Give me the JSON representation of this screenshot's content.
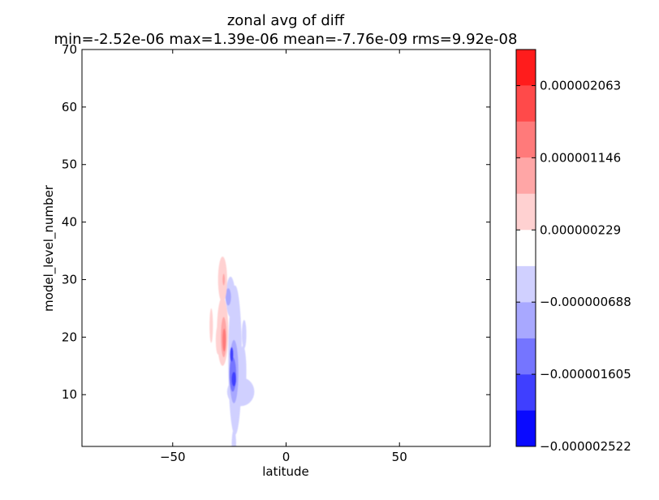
{
  "chart_data": {
    "type": "heatmap",
    "title": "zonal avg of diff",
    "subtitle": "min=-2.52e-06 max=1.39e-06 mean=-7.76e-09 rms=9.92e-08",
    "xlabel": "latitude",
    "ylabel": "model_level_number",
    "xlim": [
      -90,
      90
    ],
    "ylim": [
      1,
      70
    ],
    "x_ticks": [
      -50,
      0,
      50
    ],
    "x_tick_labels": [
      "−50",
      "0",
      "50"
    ],
    "y_ticks": [
      10,
      20,
      30,
      40,
      50,
      60,
      70
    ],
    "y_tick_labels": [
      "10",
      "20",
      "30",
      "40",
      "50",
      "60",
      "70"
    ],
    "colorbar": {
      "levels": [
        -2.522e-06,
        -2.0635e-06,
        -1.605e-06,
        -1.1465e-06,
        -6.88e-07,
        -2.295e-07,
        2.29e-07,
        6.875e-07,
        1.146e-06,
        1.6045e-06,
        2.063e-06,
        2.5215e-06
      ],
      "colors": [
        "#0a0aff",
        "#3f3fff",
        "#7575ff",
        "#a8a8ff",
        "#d0d0ff",
        "#ffffff",
        "#ffd1d1",
        "#ffa6a6",
        "#ff7a7a",
        "#ff4a4a",
        "#ff1c1c"
      ],
      "tick_values": [
        2.063e-06,
        1.146e-06,
        2.29e-07,
        -6.88e-07,
        -1.605e-06,
        -2.522e-06
      ],
      "tick_labels": [
        "0.000002063",
        "0.000001146",
        "0.000000229",
        "−0.000000688",
        "−0.000001605",
        "−0.000002522"
      ]
    },
    "features": [
      {
        "lat": -22.5,
        "lev": 16,
        "w": 6,
        "h": 26,
        "level": 4
      },
      {
        "lat": -20,
        "lev": 10.5,
        "w": 12,
        "h": 5,
        "level": 4
      },
      {
        "lat": -23,
        "lev": 1,
        "w": 2,
        "h": 6,
        "level": 4
      },
      {
        "lat": -24.5,
        "lev": 27,
        "w": 4,
        "h": 7,
        "level": 4
      },
      {
        "lat": -19,
        "lev": 14,
        "w": 3,
        "h": 9,
        "level": 4
      },
      {
        "lat": -18.5,
        "lev": 20.5,
        "w": 2,
        "h": 5,
        "level": 4
      },
      {
        "lat": -23,
        "lev": 14,
        "w": 4,
        "h": 11,
        "level": 3
      },
      {
        "lat": -25.5,
        "lev": 27,
        "w": 2.5,
        "h": 3,
        "level": 3
      },
      {
        "lat": -23.5,
        "lev": 13.5,
        "w": 3,
        "h": 6,
        "level": 2
      },
      {
        "lat": -23,
        "lev": 12.7,
        "w": 2,
        "h": 2.5,
        "level": 1
      },
      {
        "lat": -24,
        "lev": 17,
        "w": 1.5,
        "h": 2.5,
        "level": 1
      },
      {
        "lat": -28,
        "lev": 21,
        "w": 5,
        "h": 12,
        "level": 6
      },
      {
        "lat": -28,
        "lev": 30,
        "w": 4,
        "h": 8,
        "level": 6
      },
      {
        "lat": -33,
        "lev": 22,
        "w": 1.5,
        "h": 6,
        "level": 6
      },
      {
        "lat": -30,
        "lev": 19.5,
        "w": 2,
        "h": 5,
        "level": 6
      },
      {
        "lat": -27.5,
        "lev": 20,
        "w": 2.5,
        "h": 7,
        "level": 7
      },
      {
        "lat": -27.3,
        "lev": 19.5,
        "w": 1.5,
        "h": 4,
        "level": 8
      },
      {
        "lat": -27.5,
        "lev": 30,
        "w": 1,
        "h": 2,
        "level": 7
      }
    ]
  }
}
